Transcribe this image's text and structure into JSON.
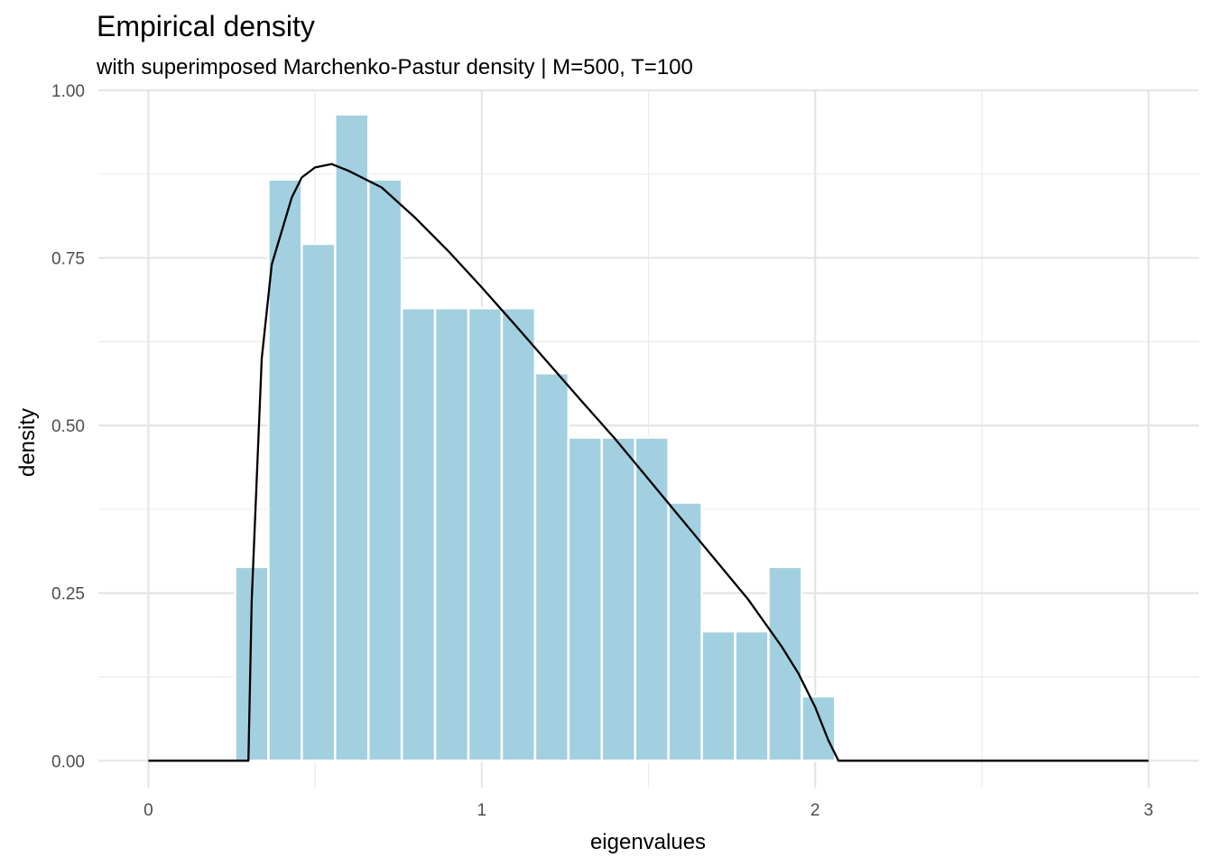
{
  "chart_data": {
    "type": "bar",
    "title": "Empirical density",
    "subtitle": "with superimposed Marchenko-Pastur density | M=500, T=100",
    "xlabel": "eigenvalues",
    "ylabel": "density",
    "xlim": [
      -0.15,
      3.15
    ],
    "ylim": [
      -0.04,
      1.0
    ],
    "x_ticks": [
      0,
      1,
      2,
      3
    ],
    "x_tick_labels": [
      "0",
      "1",
      "2",
      "3"
    ],
    "y_ticks": [
      0,
      0.25,
      0.5,
      0.75,
      1.0
    ],
    "y_tick_labels": [
      "0.00",
      "0.25",
      "0.50",
      "0.75",
      "1.00"
    ],
    "grid": true,
    "bar_color": "#a2d0e0",
    "bar_edge_color": "#ffffff",
    "bins": [
      {
        "x0": 0.26,
        "x1": 0.36,
        "density": 0.289
      },
      {
        "x0": 0.36,
        "x1": 0.46,
        "density": 0.867
      },
      {
        "x0": 0.46,
        "x1": 0.56,
        "density": 0.771
      },
      {
        "x0": 0.56,
        "x1": 0.66,
        "density": 0.964
      },
      {
        "x0": 0.66,
        "x1": 0.76,
        "density": 0.867
      },
      {
        "x0": 0.76,
        "x1": 0.86,
        "density": 0.675
      },
      {
        "x0": 0.86,
        "x1": 0.96,
        "density": 0.675
      },
      {
        "x0": 0.96,
        "x1": 1.06,
        "density": 0.675
      },
      {
        "x0": 1.06,
        "x1": 1.16,
        "density": 0.675
      },
      {
        "x0": 1.16,
        "x1": 1.26,
        "density": 0.578
      },
      {
        "x0": 1.26,
        "x1": 1.36,
        "density": 0.482
      },
      {
        "x0": 1.36,
        "x1": 1.46,
        "density": 0.482
      },
      {
        "x0": 1.46,
        "x1": 1.56,
        "density": 0.482
      },
      {
        "x0": 1.56,
        "x1": 1.66,
        "density": 0.385
      },
      {
        "x0": 1.66,
        "x1": 1.76,
        "density": 0.193
      },
      {
        "x0": 1.76,
        "x1": 1.86,
        "density": 0.193
      },
      {
        "x0": 1.86,
        "x1": 1.96,
        "density": 0.289
      },
      {
        "x0": 1.96,
        "x1": 2.06,
        "density": 0.096
      }
    ],
    "series": [
      {
        "type": "line",
        "color": "#000000",
        "x": [
          0.0,
          0.3,
          0.31,
          0.34,
          0.37,
          0.4,
          0.43,
          0.46,
          0.5,
          0.55,
          0.6,
          0.7,
          0.8,
          0.9,
          1.0,
          1.1,
          1.2,
          1.3,
          1.4,
          1.5,
          1.6,
          1.7,
          1.8,
          1.9,
          1.95,
          2.0,
          2.04,
          2.07,
          2.1,
          3.0
        ],
        "y": [
          0.0,
          0.0,
          0.24,
          0.6,
          0.74,
          0.79,
          0.84,
          0.87,
          0.885,
          0.89,
          0.88,
          0.855,
          0.81,
          0.76,
          0.706,
          0.65,
          0.593,
          0.536,
          0.48,
          0.42,
          0.36,
          0.3,
          0.24,
          0.17,
          0.13,
          0.08,
          0.03,
          0.0,
          0.0,
          0.0
        ]
      }
    ]
  }
}
